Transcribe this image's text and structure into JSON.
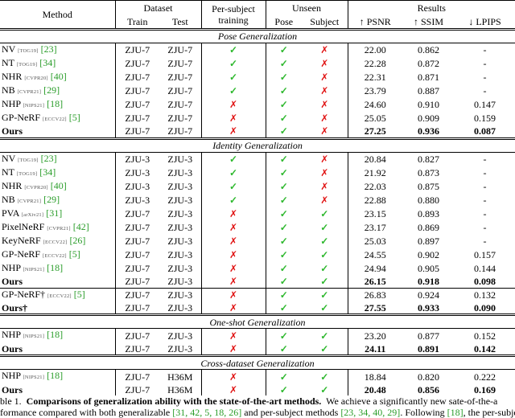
{
  "header": {
    "method": "Method",
    "dataset": "Dataset",
    "train": "Train",
    "test": "Test",
    "per_subject": "Per-subject training",
    "unseen": "Unseen",
    "pose": "Pose",
    "subject": "Subject",
    "results": "Results",
    "psnr": "↑ PSNR",
    "ssim": "↑ SSIM",
    "lpips": "↓ LPIPS"
  },
  "sections": [
    {
      "title": "Pose Generalization",
      "groups": [
        [
          {
            "method": {
              "name": "NV",
              "venue": "[TOG19]",
              "cite": "[23]"
            },
            "train": "ZJU-7",
            "test": "ZJU-7",
            "per_subject": "✓",
            "pose": "✓",
            "subject": "✗",
            "psnr": "22.00",
            "ssim": "0.862",
            "lpips": "-"
          },
          {
            "method": {
              "name": "NT",
              "venue": "[TOG19]",
              "cite": "[34]"
            },
            "train": "ZJU-7",
            "test": "ZJU-7",
            "per_subject": "✓",
            "pose": "✓",
            "subject": "✗",
            "psnr": "22.28",
            "ssim": "0.872",
            "lpips": "-"
          },
          {
            "method": {
              "name": "NHR",
              "venue": "[CVPR20]",
              "cite": "[40]"
            },
            "train": "ZJU-7",
            "test": "ZJU-7",
            "per_subject": "✓",
            "pose": "✓",
            "subject": "✗",
            "psnr": "22.31",
            "ssim": "0.871",
            "lpips": "-"
          },
          {
            "method": {
              "name": "NB",
              "venue": "[CVPR21]",
              "cite": "[29]"
            },
            "train": "ZJU-7",
            "test": "ZJU-7",
            "per_subject": "✓",
            "pose": "✓",
            "subject": "✗",
            "psnr": "23.79",
            "ssim": "0.887",
            "lpips": "-"
          },
          {
            "method": {
              "name": "NHP",
              "venue": "[NIPS21]",
              "cite": "[18]"
            },
            "train": "ZJU-7",
            "test": "ZJU-7",
            "per_subject": "✗",
            "pose": "✓",
            "subject": "✗",
            "psnr": "24.60",
            "ssim": "0.910",
            "lpips": "0.147"
          },
          {
            "method": {
              "name": "GP-NeRF",
              "venue": "[ECCV22]",
              "cite": "[5]"
            },
            "train": "ZJU-7",
            "test": "ZJU-7",
            "per_subject": "✗",
            "pose": "✓",
            "subject": "✗",
            "psnr": "25.05",
            "ssim": "0.909",
            "lpips": "0.159"
          },
          {
            "method": {
              "name": "Ours"
            },
            "train": "ZJU-7",
            "test": "ZJU-7",
            "per_subject": "✗",
            "pose": "✓",
            "subject": "✗",
            "psnr": "27.25",
            "ssim": "0.936",
            "lpips": "0.087",
            "bold": true
          }
        ]
      ]
    },
    {
      "title": "Identity Generalization",
      "groups": [
        [
          {
            "method": {
              "name": "NV",
              "venue": "[TOG19]",
              "cite": "[23]"
            },
            "train": "ZJU-3",
            "test": "ZJU-3",
            "per_subject": "✓",
            "pose": "✓",
            "subject": "✗",
            "psnr": "20.84",
            "ssim": "0.827",
            "lpips": "-"
          },
          {
            "method": {
              "name": "NT",
              "venue": "[TOG19]",
              "cite": "[34]"
            },
            "train": "ZJU-3",
            "test": "ZJU-3",
            "per_subject": "✓",
            "pose": "✓",
            "subject": "✗",
            "psnr": "21.92",
            "ssim": "0.873",
            "lpips": "-"
          },
          {
            "method": {
              "name": "NHR",
              "venue": "[CVPR20]",
              "cite": "[40]"
            },
            "train": "ZJU-3",
            "test": "ZJU-3",
            "per_subject": "✓",
            "pose": "✓",
            "subject": "✗",
            "psnr": "22.03",
            "ssim": "0.875",
            "lpips": "-"
          },
          {
            "method": {
              "name": "NB",
              "venue": "[CVPR21]",
              "cite": "[29]"
            },
            "train": "ZJU-3",
            "test": "ZJU-3",
            "per_subject": "✓",
            "pose": "✓",
            "subject": "✗",
            "psnr": "22.88",
            "ssim": "0.880",
            "lpips": "-"
          },
          {
            "method": {
              "name": "PVA",
              "venue": "[arXiv21]",
              "cite": "[31]"
            },
            "train": "ZJU-7",
            "test": "ZJU-3",
            "per_subject": "✗",
            "pose": "✓",
            "subject": "✓",
            "psnr": "23.15",
            "ssim": "0.893",
            "lpips": "-"
          },
          {
            "method": {
              "name": "PixelNeRF",
              "venue": "[CVPR21]",
              "cite": "[42]"
            },
            "train": "ZJU-7",
            "test": "ZJU-3",
            "per_subject": "✗",
            "pose": "✓",
            "subject": "✓",
            "psnr": "23.17",
            "ssim": "0.869",
            "lpips": "-"
          },
          {
            "method": {
              "name": "KeyNeRF",
              "venue": "[ECCV22]",
              "cite": "[26]"
            },
            "train": "ZJU-7",
            "test": "ZJU-3",
            "per_subject": "✗",
            "pose": "✓",
            "subject": "✓",
            "psnr": "25.03",
            "ssim": "0.897",
            "lpips": "-"
          },
          {
            "method": {
              "name": "GP-NeRF",
              "venue": "[ECCV22]",
              "cite": "[5]"
            },
            "train": "ZJU-7",
            "test": "ZJU-3",
            "per_subject": "✗",
            "pose": "✓",
            "subject": "✓",
            "psnr": "24.55",
            "ssim": "0.902",
            "lpips": "0.157"
          },
          {
            "method": {
              "name": "NHP",
              "venue": "[NIPS21]",
              "cite": "[18]"
            },
            "train": "ZJU-7",
            "test": "ZJU-3",
            "per_subject": "✗",
            "pose": "✓",
            "subject": "✓",
            "psnr": "24.94",
            "ssim": "0.905",
            "lpips": "0.144"
          },
          {
            "method": {
              "name": "Ours"
            },
            "train": "ZJU-7",
            "test": "ZJU-3",
            "per_subject": "✗",
            "pose": "✓",
            "subject": "✓",
            "psnr": "26.15",
            "ssim": "0.918",
            "lpips": "0.098",
            "bold": true
          }
        ],
        [
          {
            "method": {
              "name": "GP-NeRF†",
              "venue": "[ECCV22]",
              "cite": "[5]"
            },
            "train": "ZJU-7",
            "test": "ZJU-3",
            "per_subject": "✗",
            "pose": "✓",
            "subject": "✓",
            "psnr": "26.83",
            "ssim": "0.924",
            "lpips": "0.132"
          },
          {
            "method": {
              "name": "Ours†"
            },
            "train": "ZJU-7",
            "test": "ZJU-3",
            "per_subject": "✗",
            "pose": "✓",
            "subject": "✓",
            "psnr": "27.55",
            "ssim": "0.933",
            "lpips": "0.090",
            "bold": true
          }
        ]
      ]
    },
    {
      "title": "One-shot Generalization",
      "groups": [
        [
          {
            "method": {
              "name": "NHP",
              "venue": "[NIPS21]",
              "cite": "[18]"
            },
            "train": "ZJU-7",
            "test": "ZJU-3",
            "per_subject": "✗",
            "pose": "✓",
            "subject": "✓",
            "psnr": "23.20",
            "ssim": "0.877",
            "lpips": "0.152"
          },
          {
            "method": {
              "name": "Ours"
            },
            "train": "ZJU-7",
            "test": "ZJU-3",
            "per_subject": "✗",
            "pose": "✓",
            "subject": "✓",
            "psnr": "24.11",
            "ssim": "0.891",
            "lpips": "0.142",
            "bold": true
          }
        ]
      ]
    },
    {
      "title": "Cross-dataset Generalization",
      "groups": [
        [
          {
            "method": {
              "name": "NHP",
              "venue": "[NIPS21]",
              "cite": "[18]"
            },
            "train": "ZJU-7",
            "test": "H36M",
            "per_subject": "✗",
            "pose": "✓",
            "subject": "✓",
            "psnr": "18.84",
            "ssim": "0.820",
            "lpips": "0.222"
          },
          {
            "method": {
              "name": "Ours"
            },
            "train": "ZJU-7",
            "test": "H36M",
            "per_subject": "✗",
            "pose": "✓",
            "subject": "✓",
            "psnr": "20.48",
            "ssim": "0.856",
            "lpips": "0.169",
            "bold": true
          }
        ]
      ]
    }
  ],
  "caption": [
    [
      {
        "text": "ble 1.  "
      },
      {
        "text": "Comparisons of generalization ability with the state-of-the-art methods.",
        "bold": true
      },
      {
        "text": "  We achieve a significantly new sate-of-the-a"
      }
    ],
    [
      {
        "text": "formance compared with both generalizable "
      },
      {
        "text": "[31, 42, 5, 18, 26]",
        "cite": true
      },
      {
        "text": " and per-subject methods "
      },
      {
        "text": "[23, 34, 40, 29]",
        "cite": true
      },
      {
        "text": ". Following "
      },
      {
        "text": "[18]",
        "cite": true
      },
      {
        "text": ", the per-subje"
      }
    ]
  ]
}
